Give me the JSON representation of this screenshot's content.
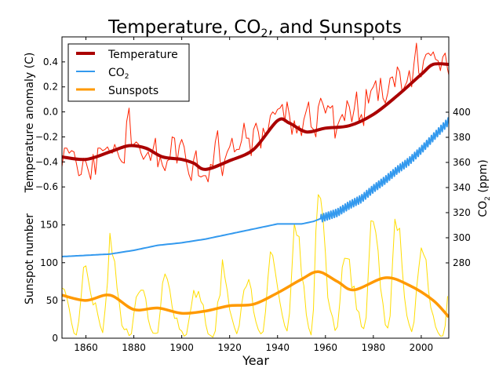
{
  "chart_data": {
    "type": "line",
    "title": "Temperature, CO",
    "title_sub": "2",
    "title_rest": ", and Sunspots",
    "xlabel": "Year",
    "xlim": [
      1850,
      2011.5
    ],
    "xticks": [
      1860,
      1880,
      1900,
      1920,
      1940,
      1960,
      1980,
      2000
    ],
    "axes": {
      "temperature": {
        "label": "Temperature anomaly (C)",
        "ylim": [
          -1.81,
          0.6
        ],
        "ticks": [
          0.4,
          0.2,
          0.0,
          -0.2,
          -0.4,
          -0.6
        ],
        "tick_labels": [
          "0.4",
          "0.2",
          "0.0",
          "−0.2",
          "−0.4",
          "−0.6"
        ],
        "side": "left"
      },
      "sunspots": {
        "label": "Sunspot number",
        "ylim": [
          0,
          399
        ],
        "ticks": [
          0,
          50,
          100,
          150
        ],
        "tick_labels": [
          "0",
          "50",
          "100",
          "150"
        ],
        "side": "left"
      },
      "co2": {
        "label": "CO",
        "label_sub": "2",
        "label_rest": " (ppm)",
        "ylim": [
          220,
          460
        ],
        "ticks": [
          280,
          300,
          320,
          340,
          360,
          380,
          400
        ],
        "tick_labels": [
          "280",
          "300",
          "320",
          "340",
          "360",
          "380",
          "400"
        ],
        "side": "right"
      }
    },
    "legend": {
      "placement": "top-left",
      "entries": [
        {
          "label": "Temperature",
          "color": "#aa0000"
        },
        {
          "label": "CO",
          "sub": "2",
          "color": "#3399ee"
        },
        {
          "label": "Sunspots",
          "color": "#ff9900"
        }
      ]
    },
    "series": [
      {
        "name": "Temperature",
        "kind": "annual",
        "axis": "temperature",
        "color": "#ff2200",
        "x_start": 1850,
        "values": [
          -0.44,
          -0.29,
          -0.29,
          -0.33,
          -0.31,
          -0.32,
          -0.41,
          -0.51,
          -0.5,
          -0.37,
          -0.4,
          -0.47,
          -0.54,
          -0.34,
          -0.5,
          -0.29,
          -0.29,
          -0.31,
          -0.3,
          -0.28,
          -0.32,
          -0.33,
          -0.26,
          -0.31,
          -0.37,
          -0.4,
          -0.41,
          -0.08,
          0.03,
          -0.26,
          -0.26,
          -0.24,
          -0.26,
          -0.33,
          -0.38,
          -0.35,
          -0.32,
          -0.39,
          -0.3,
          -0.21,
          -0.44,
          -0.36,
          -0.43,
          -0.47,
          -0.39,
          -0.38,
          -0.2,
          -0.21,
          -0.41,
          -0.27,
          -0.22,
          -0.28,
          -0.41,
          -0.5,
          -0.55,
          -0.38,
          -0.31,
          -0.51,
          -0.52,
          -0.51,
          -0.51,
          -0.56,
          -0.42,
          -0.43,
          -0.24,
          -0.15,
          -0.39,
          -0.51,
          -0.38,
          -0.32,
          -0.28,
          -0.21,
          -0.32,
          -0.3,
          -0.3,
          -0.23,
          -0.09,
          -0.21,
          -0.21,
          -0.35,
          -0.14,
          -0.09,
          -0.16,
          -0.29,
          -0.13,
          -0.19,
          -0.15,
          -0.03,
          0.0,
          -0.02,
          0.02,
          0.03,
          0.06,
          -0.08,
          0.08,
          -0.03,
          -0.18,
          -0.07,
          -0.17,
          -0.11,
          -0.19,
          -0.06,
          0.01,
          0.08,
          -0.12,
          -0.14,
          -0.2,
          0.04,
          0.11,
          0.06,
          -0.01,
          0.05,
          0.03,
          0.05,
          -0.21,
          -0.11,
          -0.06,
          -0.02,
          -0.07,
          0.09,
          0.04,
          -0.08,
          0.02,
          0.16,
          -0.07,
          -0.02,
          -0.11,
          0.18,
          0.07,
          0.17,
          0.2,
          0.25,
          0.09,
          0.27,
          0.11,
          0.07,
          0.15,
          0.27,
          0.28,
          0.2,
          0.36,
          0.32,
          0.16,
          0.2,
          0.24,
          0.33,
          0.2,
          0.39,
          0.55,
          0.31,
          0.28,
          0.41,
          0.46,
          0.47,
          0.45,
          0.48,
          0.42,
          0.41,
          0.33,
          0.44,
          0.47,
          0.34,
          0.25
        ]
      },
      {
        "name": "Temperature",
        "kind": "smoothed",
        "axis": "temperature",
        "color": "#aa0000",
        "x": [
          1850,
          1860,
          1870,
          1878,
          1885,
          1892,
          1900,
          1905,
          1910,
          1920,
          1930,
          1940,
          1945,
          1952,
          1960,
          1970,
          1980,
          1990,
          2000,
          2005,
          2011.5
        ],
        "values": [
          -0.36,
          -0.38,
          -0.32,
          -0.27,
          -0.29,
          -0.36,
          -0.38,
          -0.41,
          -0.46,
          -0.39,
          -0.3,
          -0.07,
          -0.09,
          -0.16,
          -0.13,
          -0.11,
          -0.02,
          0.13,
          0.3,
          0.38,
          0.38
        ]
      },
      {
        "name": "CO2",
        "kind": "smoothed",
        "axis": "co2",
        "color": "#3399ee",
        "x": [
          1850,
          1860,
          1870,
          1880,
          1890,
          1900,
          1910,
          1920,
          1930,
          1940,
          1950,
          1955,
          1959,
          1965,
          1970,
          1975,
          1980,
          1985,
          1990,
          1995,
          2000,
          2005,
          2010,
          2011.5
        ],
        "values": [
          285,
          286,
          287,
          290,
          294,
          296,
          299,
          303,
          307,
          311,
          311,
          313,
          316,
          320,
          326,
          331,
          339,
          346,
          354,
          361,
          370,
          380,
          390,
          393
        ],
        "seasonal_from": 1958,
        "seasonal_amplitude_ppm": 3
      },
      {
        "name": "Sunspots",
        "kind": "annual",
        "axis": "sunspots",
        "color": "#ffdd00",
        "x_start": 1850,
        "values": [
          66.5,
          64.5,
          54.2,
          39,
          20.6,
          6.7,
          4.3,
          22.7,
          54.8,
          93.8,
          95.8,
          77.2,
          59.1,
          44,
          47,
          30.5,
          16.3,
          7.3,
          37.6,
          74,
          139,
          111.2,
          101.6,
          66.2,
          44.7,
          17,
          11.3,
          12.4,
          3.4,
          6,
          32.3,
          54.3,
          59.7,
          63.7,
          63.5,
          52.2,
          25.4,
          13.1,
          6.8,
          6.3,
          7.1,
          35.6,
          73,
          85.1,
          78,
          64,
          41.8,
          26.2,
          26.7,
          12.1,
          9.5,
          2.7,
          5,
          24.4,
          42,
          63.5,
          53.8,
          62,
          48.5,
          43.9,
          18.6,
          5.7,
          3.6,
          1.4,
          9.6,
          47.4,
          57.1,
          103.9,
          80.6,
          63.6,
          37.6,
          26.1,
          14.2,
          5.8,
          16.7,
          44.3,
          63.9,
          69,
          77.8,
          64.9,
          35.7,
          21.2,
          11.1,
          5.7,
          8.7,
          36.1,
          79.7,
          114.4,
          109.6,
          88.8,
          67.8,
          47.5,
          30.6,
          16.3,
          9.6,
          33.2,
          92.6,
          151.6,
          136.3,
          134.7,
          83.9,
          69.4,
          31.5,
          13.9,
          4.4,
          38,
          141.7,
          190.2,
          184.8,
          159,
          112.3,
          53.9,
          37.6,
          27.9,
          10.2,
          15.1,
          47,
          93.8,
          105.9,
          105.5,
          104.5,
          66.6,
          68.9,
          38,
          34.5,
          15.5,
          12.6,
          27.5,
          92.5,
          155.4,
          154.6,
          140.4,
          115.9,
          66.6,
          45.9,
          17.9,
          13.4,
          29.4,
          100.2,
          157.6,
          142.6,
          145.7,
          94.3,
          54.6,
          29.9,
          17.5,
          8.6,
          21.5,
          64.3,
          93.3,
          119.6,
          111,
          104,
          63.7,
          40.4,
          29.8,
          15.2,
          7.5,
          2.9,
          3.1,
          16.5,
          55.7
        ]
      },
      {
        "name": "Sunspots",
        "kind": "smoothed",
        "axis": "sunspots",
        "color": "#ff9900",
        "x": [
          1850,
          1860,
          1870,
          1880,
          1890,
          1900,
          1910,
          1920,
          1930,
          1940,
          1950,
          1957,
          1965,
          1972,
          1985,
          1995,
          2005,
          2011.5
        ],
        "values": [
          57,
          50,
          57,
          38,
          40,
          33,
          36,
          43,
          45,
          60,
          78,
          88,
          75,
          64,
          80,
          70,
          50,
          28
        ]
      }
    ]
  }
}
